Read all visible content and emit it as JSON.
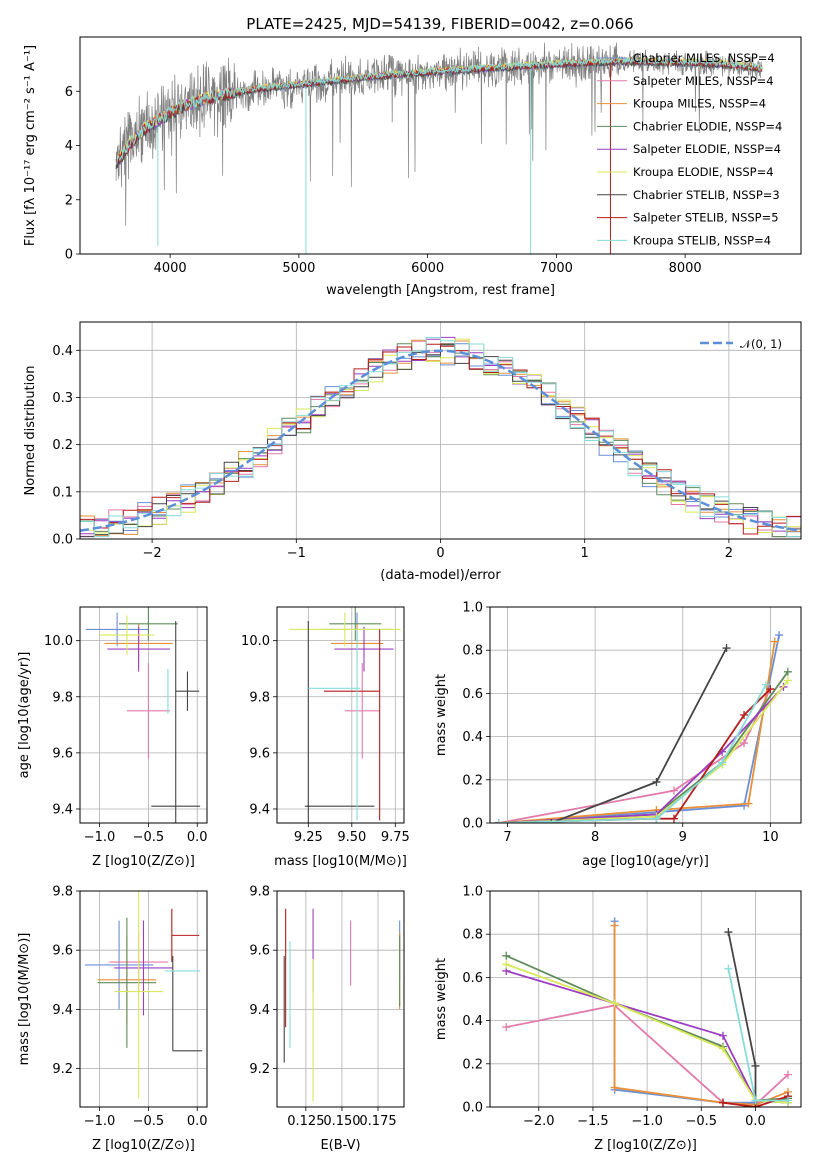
{
  "figure_title": "PLATE=2425, MJD=54139, FIBERID=0042, z=0.066",
  "colors": {
    "Chabrier MILES": "#6b8fd6",
    "Salpeter MILES": "#e27aaa",
    "Kroupa MILES": "#e8913a",
    "Chabrier ELODIE": "#5f8b5a",
    "Salpeter ELODIE": "#9b3cc2",
    "Kroupa ELODIE": "#d9e85a",
    "Chabrier STELIB": "#444444",
    "Salpeter STELIB": "#b51d1d",
    "Kroupa STELIB": "#86dcd9",
    "normal": "#5b8fd8",
    "data": "#808080"
  },
  "chart_data": [
    {
      "id": "spectrum",
      "type": "line",
      "title": "PLATE=2425, MJD=54139, FIBERID=0042, z=0.066",
      "xlabel": "wavelength [Angstrom, rest frame]",
      "ylabel": "Flux [fλ 10⁻¹⁷ erg cm⁻² s⁻¹ A⁻¹]",
      "xlim": [
        3300,
        8900
      ],
      "ylim": [
        0,
        8
      ],
      "xticks": [
        4000,
        5000,
        6000,
        7000,
        8000
      ],
      "yticks": [
        0,
        2,
        4,
        6
      ],
      "continuum": {
        "x": [
          3580,
          3650,
          3700,
          3800,
          3900,
          4000,
          4100,
          4200,
          4300,
          4500,
          4700,
          4900,
          5100,
          5300,
          5600,
          6000,
          6500,
          7000,
          7500,
          8000,
          8300,
          8500,
          8600
        ],
        "y": [
          3.3,
          3.8,
          4.1,
          4.6,
          4.9,
          5.2,
          5.45,
          5.6,
          5.75,
          5.95,
          6.1,
          6.2,
          6.3,
          6.4,
          6.55,
          6.7,
          6.85,
          7.0,
          7.1,
          7.05,
          7.0,
          6.9,
          6.8
        ]
      },
      "legend": [
        "Chabrier MILES, NSSP=4",
        "Salpeter MILES, NSSP=4",
        "Kroupa MILES, NSSP=4",
        "Chabrier ELODIE, NSSP=4",
        "Salpeter ELODIE, NSSP=4",
        "Kroupa ELODIE, NSSP=4",
        "Chabrier STELIB, NSSP=3",
        "Salpeter STELIB, NSSP=5",
        "Kroupa STELIB, NSSP=4"
      ],
      "legend_position": "right"
    },
    {
      "id": "residuals",
      "type": "step",
      "xlabel": "(data-model)/error",
      "ylabel": "Normed distribution",
      "xlim": [
        -2.5,
        2.5
      ],
      "ylim": [
        0,
        0.46
      ],
      "xticks": [
        -2,
        -1,
        0,
        1,
        2
      ],
      "yticks": [
        0.0,
        0.1,
        0.2,
        0.3,
        0.4
      ],
      "bin_width": 0.1,
      "legend": [
        "𝒩(0, 1)"
      ],
      "legend_position": "top-right",
      "grid": true
    },
    {
      "id": "age-vs-Z",
      "type": "errorbar",
      "xlabel": "Z [log10(Z/Z⊙)]",
      "ylabel": "age  [log10(age/yr)]",
      "xlim": [
        -1.2,
        0.1
      ],
      "ylim": [
        9.35,
        10.12
      ],
      "xticks": [
        -1.0,
        -0.5,
        0.0
      ],
      "yticks": [
        9.4,
        9.6,
        9.8,
        10.0
      ],
      "grid": true,
      "points": [
        {
          "model": "Chabrier MILES",
          "x": -0.82,
          "y": 10.04,
          "xerr": 0.32,
          "yerr": 0.06
        },
        {
          "model": "Salpeter MILES",
          "x": -0.5,
          "y": 9.75,
          "xerr": 0.22,
          "yerr": 0.17
        },
        {
          "model": "Kroupa MILES",
          "x": -0.6,
          "y": 9.99,
          "xerr": 0.35,
          "yerr": 0.07
        },
        {
          "model": "Chabrier ELODIE",
          "x": -0.5,
          "y": 10.06,
          "xerr": 0.3,
          "yerr": 0.06
        },
        {
          "model": "Salpeter ELODIE",
          "x": -0.6,
          "y": 9.97,
          "xerr": 0.32,
          "yerr": 0.08
        },
        {
          "model": "Kroupa ELODIE",
          "x": -0.72,
          "y": 10.02,
          "xerr": 0.28,
          "yerr": 0.07
        },
        {
          "model": "Chabrier STELIB",
          "x": -0.1,
          "y": 9.82,
          "xerr": 0.12,
          "yerr": 0.07
        },
        {
          "model": "Chabrier STELIB",
          "x": -0.22,
          "y": 9.41,
          "xerr": 0.25,
          "yerr": 0.66
        },
        {
          "model": "Kroupa STELIB",
          "x": -0.3,
          "y": 9.82,
          "xerr": 0.0,
          "yerr": 0.08
        }
      ]
    },
    {
      "id": "age-vs-mass",
      "type": "errorbar",
      "xlabel": "mass [log10(M/M⊙)]",
      "ylabel": "",
      "xlim": [
        9.07,
        9.8
      ],
      "ylim": [
        9.35,
        10.12
      ],
      "xticks": [
        9.25,
        9.5,
        9.75
      ],
      "yticks": [
        9.4,
        9.6,
        9.8,
        10.0
      ],
      "grid": true,
      "points": [
        {
          "model": "Chabrier MILES",
          "x": 9.53,
          "y": 10.04,
          "xerr": 0.2,
          "yerr": 0.06
        },
        {
          "model": "Salpeter MILES",
          "x": 9.56,
          "y": 9.75,
          "xerr": 0.1,
          "yerr": 0.17
        },
        {
          "model": "Kroupa MILES",
          "x": 9.53,
          "y": 9.99,
          "xerr": 0.15,
          "yerr": 0.07
        },
        {
          "model": "Chabrier ELODIE",
          "x": 9.52,
          "y": 10.06,
          "xerr": 0.15,
          "yerr": 0.06
        },
        {
          "model": "Salpeter ELODIE",
          "x": 9.57,
          "y": 9.97,
          "xerr": 0.17,
          "yerr": 0.08
        },
        {
          "model": "Kroupa ELODIE",
          "x": 9.46,
          "y": 10.04,
          "xerr": 0.32,
          "yerr": 0.06
        },
        {
          "model": "Chabrier STELIB",
          "x": 9.25,
          "y": 9.41,
          "xerr": 0.01,
          "yerr": 0.66
        },
        {
          "model": "Chabrier STELIB",
          "x": 9.43,
          "y": 9.41,
          "xerr": 0.2,
          "yerr": 0.0
        },
        {
          "model": "Salpeter STELIB",
          "x": 9.5,
          "y": 9.82,
          "xerr": 0.16,
          "yerr": 0.0
        },
        {
          "model": "Salpeter STELIB",
          "x": 9.66,
          "y": 9.7,
          "xerr": 0.0,
          "yerr": 0.34
        },
        {
          "model": "Kroupa STELIB",
          "x": 9.4,
          "y": 9.83,
          "xerr": 0.15,
          "yerr": 0.0
        },
        {
          "model": "Kroupa STELIB",
          "x": 9.53,
          "y": 9.7,
          "xerr": 0.0,
          "yerr": 0.34
        }
      ]
    },
    {
      "id": "mass-weight-vs-age",
      "type": "line",
      "xlabel": "age  [log10(age/yr)]",
      "ylabel": "mass weight",
      "xlim": [
        6.8,
        10.35
      ],
      "ylim": [
        0,
        1
      ],
      "xticks": [
        7,
        8,
        9,
        10
      ],
      "yticks": [
        0.0,
        0.2,
        0.4,
        0.6,
        0.8,
        1.0
      ],
      "grid": true,
      "series": [
        {
          "model": "Chabrier MILES",
          "x": [
            6.9,
            8.7,
            9.7,
            10.1
          ],
          "y": [
            0.0,
            0.05,
            0.08,
            0.87
          ]
        },
        {
          "model": "Salpeter MILES",
          "x": [
            6.9,
            8.9,
            9.7,
            10.0
          ],
          "y": [
            0.0,
            0.15,
            0.37,
            0.62
          ]
        },
        {
          "model": "Kroupa MILES",
          "x": [
            6.9,
            8.7,
            9.75,
            10.05
          ],
          "y": [
            0.0,
            0.06,
            0.09,
            0.84
          ]
        },
        {
          "model": "Chabrier ELODIE",
          "x": [
            6.9,
            8.7,
            9.45,
            10.2
          ],
          "y": [
            0.0,
            0.04,
            0.28,
            0.7
          ]
        },
        {
          "model": "Salpeter ELODIE",
          "x": [
            6.9,
            8.7,
            9.45,
            10.15
          ],
          "y": [
            0.0,
            0.04,
            0.33,
            0.63
          ]
        },
        {
          "model": "Kroupa ELODIE",
          "x": [
            6.9,
            8.7,
            9.45,
            10.2
          ],
          "y": [
            0.0,
            0.03,
            0.27,
            0.66
          ]
        },
        {
          "model": "Chabrier STELIB",
          "x": [
            7.5,
            8.7,
            9.5
          ],
          "y": [
            0.0,
            0.19,
            0.81
          ]
        },
        {
          "model": "Salpeter STELIB",
          "x": [
            6.9,
            8.7,
            8.9,
            9.7,
            10.0
          ],
          "y": [
            0.0,
            0.02,
            0.02,
            0.5,
            0.62
          ]
        },
        {
          "model": "Kroupa STELIB",
          "x": [
            6.9,
            8.7,
            9.45,
            9.95
          ],
          "y": [
            0.0,
            0.02,
            0.28,
            0.64
          ]
        }
      ]
    },
    {
      "id": "mass-vs-Z",
      "type": "errorbar",
      "xlabel": "Z [log10(Z/Z⊙)]",
      "ylabel": "mass [log10(M/M⊙)]",
      "xlim": [
        -1.2,
        0.1
      ],
      "ylim": [
        9.07,
        9.8
      ],
      "xticks": [
        -1.0,
        -0.5,
        0.0
      ],
      "yticks": [
        9.2,
        9.4,
        9.6,
        9.8
      ],
      "grid": true,
      "points": [
        {
          "model": "Chabrier MILES",
          "x": -0.8,
          "y": 9.55,
          "xerr": 0.35,
          "yerr": 0.15
        },
        {
          "model": "Salpeter MILES",
          "x": -0.6,
          "y": 9.56,
          "xerr": 0.3,
          "yerr": 0.1
        },
        {
          "model": "Kroupa MILES",
          "x": -0.72,
          "y": 9.5,
          "xerr": 0.3,
          "yerr": 0.15
        },
        {
          "model": "Chabrier ELODIE",
          "x": -0.72,
          "y": 9.49,
          "xerr": 0.3,
          "yerr": 0.22
        },
        {
          "model": "Salpeter ELODIE",
          "x": -0.55,
          "y": 9.54,
          "xerr": 0.3,
          "yerr": 0.16
        },
        {
          "model": "Kroupa ELODIE",
          "x": -0.6,
          "y": 9.46,
          "xerr": 0.25,
          "yerr": 0.36
        },
        {
          "model": "Chabrier STELIB",
          "x": -0.1,
          "y": 9.26,
          "xerr": 0.15,
          "yerr": 0.0
        },
        {
          "model": "Chabrier STELIB",
          "x": -0.25,
          "y": 9.42,
          "xerr": 0.0,
          "yerr": 0.16
        },
        {
          "model": "Salpeter STELIB",
          "x": -0.12,
          "y": 9.65,
          "xerr": 0.14,
          "yerr": 0.0
        },
        {
          "model": "Salpeter STELIB",
          "x": -0.26,
          "y": 9.65,
          "xerr": 0.0,
          "yerr": 0.09
        },
        {
          "model": "Kroupa STELIB",
          "x": -0.15,
          "y": 9.53,
          "xerr": 0.18,
          "yerr": 0.0
        }
      ]
    },
    {
      "id": "mass-vs-EBV",
      "type": "errorbar",
      "xlabel": "E(B-V)",
      "ylabel": "",
      "xlim": [
        0.105,
        0.193
      ],
      "ylim": [
        9.07,
        9.8
      ],
      "xticks": [
        0.125,
        0.15,
        0.175
      ],
      "ytick_labels": [
        "9.2",
        "9.4",
        "9.6",
        "9.8"
      ],
      "yticks": [
        9.2,
        9.4,
        9.6,
        9.8
      ],
      "xtick_labels": [
        "0.125",
        "0.150",
        "0.175"
      ],
      "grid": true,
      "points": [
        {
          "model": "Chabrier MILES",
          "x": 0.19,
          "y": 9.6,
          "xerr": 0.0,
          "yerr": 0.1
        },
        {
          "model": "Salpeter MILES",
          "x": 0.156,
          "y": 9.59,
          "xerr": 0.0,
          "yerr": 0.11
        },
        {
          "model": "Kroupa MILES",
          "x": 0.19,
          "y": 9.53,
          "xerr": 0.0,
          "yerr": 0.13
        },
        {
          "model": "Chabrier ELODIE",
          "x": 0.19,
          "y": 9.53,
          "xerr": 0.0,
          "yerr": 0.12
        },
        {
          "model": "Salpeter ELODIE",
          "x": 0.13,
          "y": 9.6,
          "xerr": 0.0,
          "yerr": 0.14
        },
        {
          "model": "Kroupa ELODIE",
          "x": 0.13,
          "y": 9.33,
          "xerr": 0.0,
          "yerr": 0.24
        },
        {
          "model": "Chabrier STELIB",
          "x": 0.11,
          "y": 9.4,
          "xerr": 0.0,
          "yerr": 0.18
        },
        {
          "model": "Salpeter STELIB",
          "x": 0.111,
          "y": 9.54,
          "xerr": 0.0,
          "yerr": 0.2
        },
        {
          "model": "Kroupa STELIB",
          "x": 0.114,
          "y": 9.45,
          "xerr": 0.0,
          "yerr": 0.18
        }
      ]
    },
    {
      "id": "mass-weight-vs-Z",
      "type": "line",
      "xlabel": "Z [log10(Z/Z⊙)]",
      "ylabel": "mass weight",
      "xlim": [
        -2.45,
        0.42
      ],
      "ylim": [
        0,
        1
      ],
      "xticks": [
        -2.0,
        -1.5,
        -1.0,
        -0.5,
        0.0
      ],
      "yticks": [
        0.0,
        0.2,
        0.4,
        0.6,
        0.8,
        1.0
      ],
      "grid": true,
      "series": [
        {
          "model": "Chabrier MILES",
          "x": [
            -1.3,
            -1.3,
            -0.3,
            0.0,
            0.3
          ],
          "y": [
            0.86,
            0.08,
            0.02,
            0.02,
            0.04
          ]
        },
        {
          "model": "Salpeter MILES",
          "x": [
            -2.3,
            -1.3,
            -0.3,
            0.0,
            0.3
          ],
          "y": [
            0.37,
            0.47,
            0.02,
            0.01,
            0.15
          ]
        },
        {
          "model": "Kroupa MILES",
          "x": [
            -1.3,
            -1.3,
            -0.3,
            0.0,
            0.3
          ],
          "y": [
            0.84,
            0.09,
            0.02,
            0.01,
            0.07
          ]
        },
        {
          "model": "Chabrier ELODIE",
          "x": [
            -2.3,
            -1.3,
            -0.3,
            0.0,
            0.3
          ],
          "y": [
            0.7,
            0.48,
            0.28,
            0.03,
            0.04
          ]
        },
        {
          "model": "Salpeter ELODIE",
          "x": [
            -2.3,
            -1.3,
            -0.3,
            0.0,
            0.3
          ],
          "y": [
            0.63,
            0.48,
            0.33,
            0.03,
            0.02
          ]
        },
        {
          "model": "Kroupa ELODIE",
          "x": [
            -2.3,
            -1.3,
            -0.3,
            0.0,
            0.3
          ],
          "y": [
            0.66,
            0.48,
            0.27,
            0.03,
            0.02
          ]
        },
        {
          "model": "Chabrier STELIB",
          "x": [
            -0.25,
            0.0,
            0.0
          ],
          "y": [
            0.81,
            0.19,
            0.0
          ]
        },
        {
          "model": "Salpeter STELIB",
          "x": [
            -0.3,
            0.0,
            0.3
          ],
          "y": [
            0.02,
            0.0,
            0.05
          ]
        },
        {
          "model": "Kroupa STELIB",
          "x": [
            -0.25,
            0.0,
            0.3
          ],
          "y": [
            0.64,
            0.03,
            0.03
          ]
        }
      ]
    }
  ]
}
